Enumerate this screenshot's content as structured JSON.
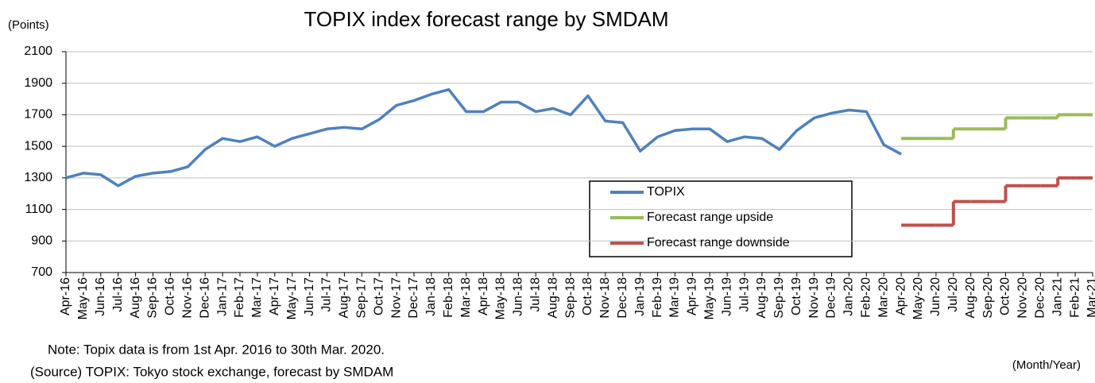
{
  "chart_data": {
    "type": "line",
    "title": "TOPIX index forecast range by SMDAM",
    "y_label": "(Points)",
    "x_label": "(Month/Year)",
    "notes": [
      "Note: Topix data is from 1st Apr. 2016 to 30th Mar. 2020.",
      "(Source) TOPIX: Tokyo stock exchange, forecast by SMDAM"
    ],
    "categories": [
      "Apr-16",
      "May-16",
      "Jun-16",
      "Jul-16",
      "Aug-16",
      "Sep-16",
      "Oct-16",
      "Nov-16",
      "Dec-16",
      "Jan-17",
      "Feb-17",
      "Mar-17",
      "Apr-17",
      "May-17",
      "Jun-17",
      "Jul-17",
      "Aug-17",
      "Sep-17",
      "Oct-17",
      "Nov-17",
      "Dec-17",
      "Jan-18",
      "Feb-18",
      "Mar-18",
      "Apr-18",
      "May-18",
      "Jun-18",
      "Jul-18",
      "Aug-18",
      "Sep-18",
      "Oct-18",
      "Nov-18",
      "Dec-18",
      "Jan-19",
      "Feb-19",
      "Mar-19",
      "Apr-19",
      "May-19",
      "Jun-19",
      "Jul-19",
      "Aug-19",
      "Sep-19",
      "Oct-19",
      "Nov-19",
      "Dec-19",
      "Jan-20",
      "Feb-20",
      "Mar-20",
      "Apr-20",
      "May-20",
      "Jun-20",
      "Jul-20",
      "Aug-20",
      "Sep-20",
      "Oct-20",
      "Nov-20",
      "Dec-20",
      "Jan-21",
      "Feb-21",
      "Mar-21"
    ],
    "series": [
      {
        "name": "TOPIX",
        "color": "#4f81bd",
        "step": false,
        "values": [
          1300,
          1330,
          1320,
          1250,
          1310,
          1330,
          1340,
          1370,
          1480,
          1550,
          1530,
          1560,
          1500,
          1550,
          1580,
          1610,
          1620,
          1610,
          1670,
          1760,
          1790,
          1830,
          1860,
          1720,
          1720,
          1780,
          1780,
          1720,
          1740,
          1700,
          1820,
          1660,
          1650,
          1470,
          1560,
          1600,
          1610,
          1610,
          1530,
          1560,
          1550,
          1480,
          1600,
          1680,
          1710,
          1730,
          1720,
          1510,
          1450,
          null,
          null,
          null,
          null,
          null,
          null,
          null,
          null,
          null,
          null,
          null
        ]
      },
      {
        "name": "Forecast range upside",
        "color": "#9bbb59",
        "step": true,
        "values": [
          null,
          null,
          null,
          null,
          null,
          null,
          null,
          null,
          null,
          null,
          null,
          null,
          null,
          null,
          null,
          null,
          null,
          null,
          null,
          null,
          null,
          null,
          null,
          null,
          null,
          null,
          null,
          null,
          null,
          null,
          null,
          null,
          null,
          null,
          null,
          null,
          null,
          null,
          null,
          null,
          null,
          null,
          null,
          null,
          null,
          null,
          null,
          null,
          1550,
          1550,
          1550,
          1610,
          1610,
          1610,
          1680,
          1680,
          1680,
          1700,
          1700,
          1700
        ]
      },
      {
        "name": "Forecast range downside",
        "color": "#c0504d",
        "step": true,
        "values": [
          null,
          null,
          null,
          null,
          null,
          null,
          null,
          null,
          null,
          null,
          null,
          null,
          null,
          null,
          null,
          null,
          null,
          null,
          null,
          null,
          null,
          null,
          null,
          null,
          null,
          null,
          null,
          null,
          null,
          null,
          null,
          null,
          null,
          null,
          null,
          null,
          null,
          null,
          null,
          null,
          null,
          null,
          null,
          null,
          null,
          null,
          null,
          null,
          1000,
          1000,
          1000,
          1150,
          1150,
          1150,
          1250,
          1250,
          1250,
          1300,
          1300,
          1300
        ]
      }
    ],
    "ylim": [
      700,
      2100
    ],
    "yticks": [
      700,
      900,
      1100,
      1300,
      1500,
      1700,
      1900,
      2100
    ],
    "grid": true
  }
}
